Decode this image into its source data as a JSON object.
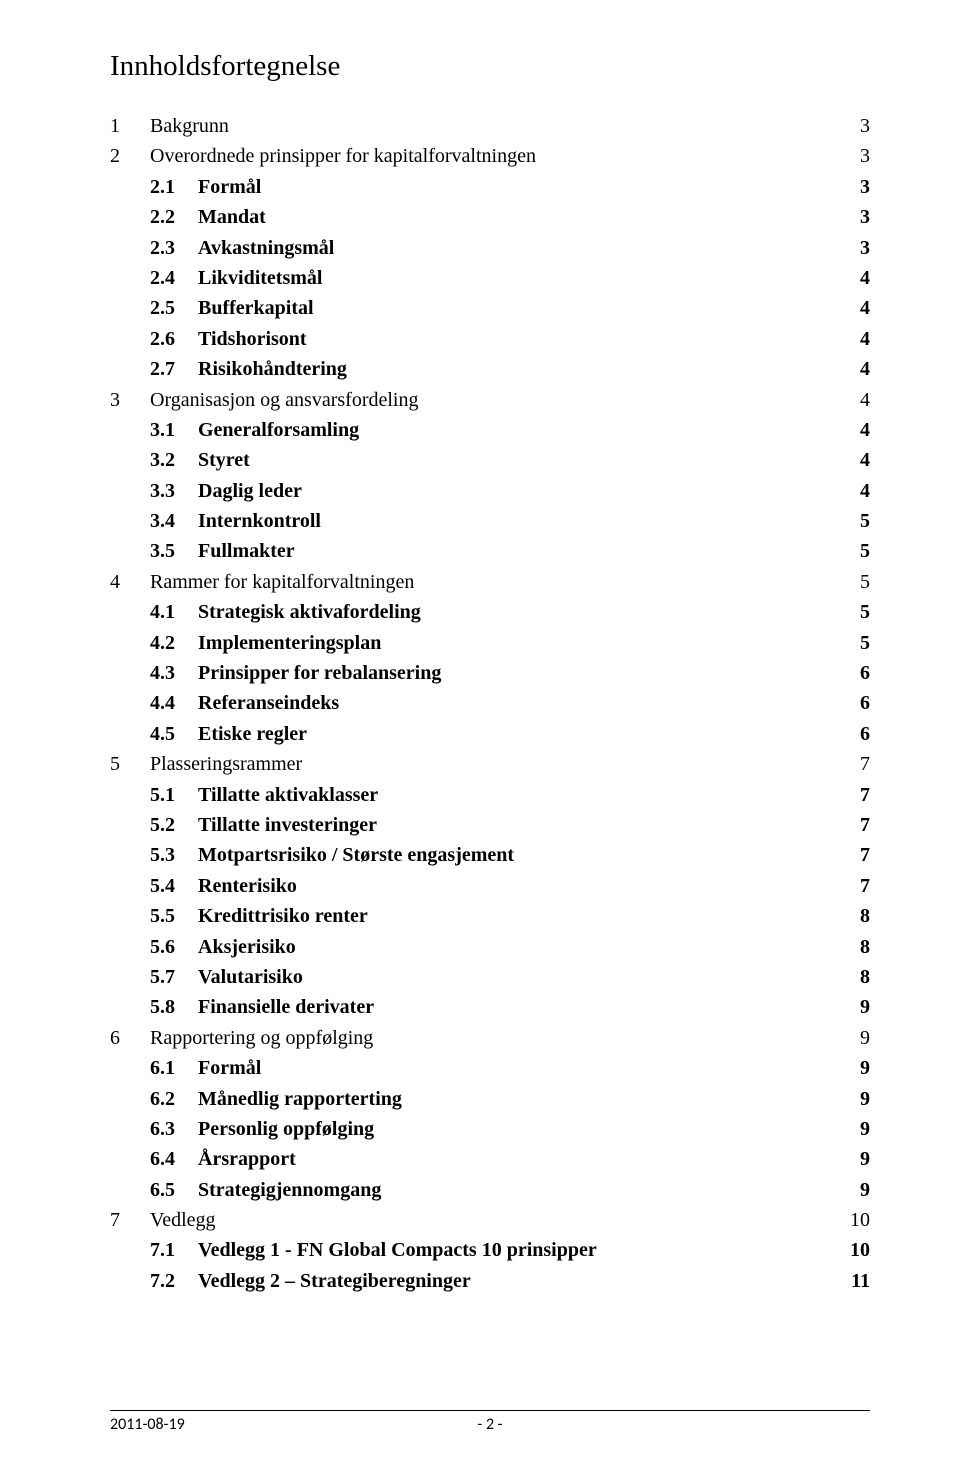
{
  "title": "Innholdsfortegnelse",
  "toc": [
    {
      "level": 1,
      "num": "1",
      "label": "Bakgrunn",
      "page": "3"
    },
    {
      "level": 1,
      "num": "2",
      "label": "Overordnede prinsipper for kapitalforvaltningen",
      "page": "3"
    },
    {
      "level": 2,
      "num": "2.1",
      "label": "Formål",
      "page": "3"
    },
    {
      "level": 2,
      "num": "2.2",
      "label": "Mandat",
      "page": "3"
    },
    {
      "level": 2,
      "num": "2.3",
      "label": "Avkastningsmål",
      "page": "3"
    },
    {
      "level": 2,
      "num": "2.4",
      "label": "Likviditetsmål",
      "page": "4"
    },
    {
      "level": 2,
      "num": "2.5",
      "label": "Bufferkapital",
      "page": "4"
    },
    {
      "level": 2,
      "num": "2.6",
      "label": "Tidshorisont",
      "page": "4"
    },
    {
      "level": 2,
      "num": "2.7",
      "label": "Risikohåndtering",
      "page": "4"
    },
    {
      "level": 1,
      "num": "3",
      "label": "Organisasjon og ansvarsfordeling",
      "page": "4"
    },
    {
      "level": 2,
      "num": "3.1",
      "label": "Generalforsamling",
      "page": "4"
    },
    {
      "level": 2,
      "num": "3.2",
      "label": "Styret",
      "page": "4"
    },
    {
      "level": 2,
      "num": "3.3",
      "label": "Daglig leder",
      "page": "4"
    },
    {
      "level": 2,
      "num": "3.4",
      "label": "Internkontroll",
      "page": "5"
    },
    {
      "level": 2,
      "num": "3.5",
      "label": "Fullmakter",
      "page": "5"
    },
    {
      "level": 1,
      "num": "4",
      "label": "Rammer for kapitalforvaltningen",
      "page": "5"
    },
    {
      "level": 2,
      "num": "4.1",
      "label": "Strategisk aktivafordeling",
      "page": "5"
    },
    {
      "level": 2,
      "num": "4.2",
      "label": "Implementeringsplan",
      "page": "5"
    },
    {
      "level": 2,
      "num": "4.3",
      "label": "Prinsipper for rebalansering",
      "page": "6"
    },
    {
      "level": 2,
      "num": "4.4",
      "label": "Referanseindeks",
      "page": "6"
    },
    {
      "level": 2,
      "num": "4.5",
      "label": "Etiske regler",
      "page": "6"
    },
    {
      "level": 1,
      "num": "5",
      "label": "Plasseringsrammer",
      "page": "7"
    },
    {
      "level": 2,
      "num": "5.1",
      "label": "Tillatte aktivaklasser",
      "page": "7"
    },
    {
      "level": 2,
      "num": "5.2",
      "label": "Tillatte investeringer",
      "page": "7"
    },
    {
      "level": 2,
      "num": "5.3",
      "label": "Motpartsrisiko / Største engasjement",
      "page": "7"
    },
    {
      "level": 2,
      "num": "5.4",
      "label": "Renterisiko",
      "page": "7"
    },
    {
      "level": 2,
      "num": "5.5",
      "label": "Kredittrisiko renter",
      "page": "8"
    },
    {
      "level": 2,
      "num": "5.6",
      "label": "Aksjerisiko",
      "page": "8"
    },
    {
      "level": 2,
      "num": "5.7",
      "label": "Valutarisiko",
      "page": "8"
    },
    {
      "level": 2,
      "num": "5.8",
      "label": "Finansielle derivater",
      "page": "9"
    },
    {
      "level": 1,
      "num": "6",
      "label": "Rapportering og oppfølging",
      "page": "9"
    },
    {
      "level": 2,
      "num": "6.1",
      "label": "Formål",
      "page": "9"
    },
    {
      "level": 2,
      "num": "6.2",
      "label": "Månedlig rapporterting",
      "page": "9"
    },
    {
      "level": 2,
      "num": "6.3",
      "label": "Personlig oppfølging",
      "page": "9"
    },
    {
      "level": 2,
      "num": "6.4",
      "label": "Årsrapport",
      "page": "9"
    },
    {
      "level": 2,
      "num": "6.5",
      "label": "Strategigjennomgang",
      "page": "9"
    },
    {
      "level": 1,
      "num": "7",
      "label": "Vedlegg",
      "page": "10"
    },
    {
      "level": 2,
      "num": "7.1",
      "label": "Vedlegg 1 - FN Global Compacts 10 prinsipper",
      "page": "10"
    },
    {
      "level": 2,
      "num": "7.2",
      "label": "Vedlegg 2 – Strategiberegninger",
      "page": "11"
    }
  ],
  "footer": {
    "date": "2011-08-19",
    "page": "- 2 -"
  }
}
